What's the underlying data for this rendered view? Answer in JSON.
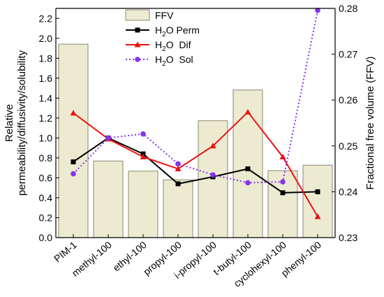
{
  "chart_data": {
    "type": "bar",
    "categories": [
      "PIM-1",
      "methyl-100",
      "ethyl-100",
      "propyl-100",
      "i-propyl-100",
      "t-butyl-100",
      "cyclohexyl-100",
      "phenyl-100"
    ],
    "left_axis": {
      "label_line1": "Relative",
      "label_line2": "permeability/diffusivity/solubility",
      "ylim": [
        0.0,
        2.3
      ],
      "ticks": [
        "0.0",
        "0.2",
        "0.4",
        "0.6",
        "0.8",
        "1.0",
        "1.2",
        "1.4",
        "1.6",
        "1.8",
        "2.0",
        "2.2"
      ]
    },
    "right_axis": {
      "label": "Fractional free volume (FFV)",
      "ylim": [
        0.23,
        0.28
      ],
      "ticks": [
        "0.23",
        "0.24",
        "0.25",
        "0.26",
        "0.27",
        "0.28"
      ]
    },
    "bars": {
      "name": "FFV",
      "axis": "right",
      "values": [
        0.2722,
        0.2467,
        0.2445,
        0.2426,
        0.2555,
        0.2622,
        0.2446,
        0.2458
      ],
      "fill": "#ecebd1",
      "stroke": "#8a8a70"
    },
    "series": [
      {
        "id": "perm",
        "name_main": "H",
        "name_sub": "2",
        "name_rest": "O Perm",
        "axis": "left",
        "values": [
          0.76,
          1.0,
          0.84,
          0.54,
          0.61,
          0.69,
          0.45,
          0.46
        ],
        "color": "#000000",
        "marker": "square",
        "dash": "solid"
      },
      {
        "id": "dif",
        "name_main": "H",
        "name_sub": "2",
        "name_rest": "O  Dif",
        "axis": "left",
        "values": [
          1.25,
          0.99,
          0.81,
          0.69,
          0.92,
          1.26,
          0.81,
          0.21
        ],
        "color": "#ee1111",
        "marker": "triangle",
        "dash": "solid"
      },
      {
        "id": "sol",
        "name_main": "H",
        "name_sub": "2",
        "name_rest": "O  Sol",
        "axis": "left",
        "values": [
          0.64,
          1.0,
          1.04,
          0.74,
          0.63,
          0.55,
          0.56,
          2.28
        ],
        "color": "#8833ee",
        "marker": "circle",
        "dash": "dotted"
      }
    ],
    "legend_position": "top-center"
  }
}
